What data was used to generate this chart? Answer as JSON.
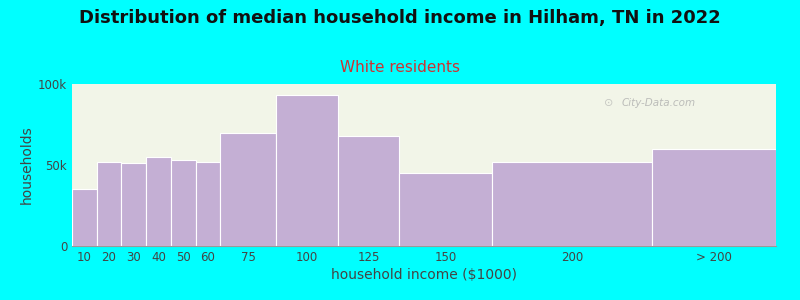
{
  "title": "Distribution of median household income in Hilham, TN in 2022",
  "subtitle": "White residents",
  "xlabel": "household income ($1000)",
  "ylabel": "households",
  "background_color": "#00FFFF",
  "plot_bg_color": "#f2f5e8",
  "bar_color": "#c4afd4",
  "bar_edge_color": "#ffffff",
  "categories": [
    "10",
    "20",
    "30",
    "40",
    "50",
    "60",
    "75",
    "100",
    "125",
    "150",
    "200",
    "> 200"
  ],
  "bin_edges": [
    5,
    15,
    25,
    35,
    45,
    55,
    65,
    87.5,
    112.5,
    137.5,
    175,
    240,
    290
  ],
  "values": [
    35000,
    52000,
    51000,
    55000,
    53000,
    52000,
    70000,
    93000,
    68000,
    45000,
    52000,
    60000
  ],
  "ylim": [
    0,
    100000
  ],
  "ytick_labels": [
    "0",
    "50k",
    "100k"
  ],
  "ytick_values": [
    0,
    50000,
    100000
  ],
  "title_fontsize": 13,
  "subtitle_fontsize": 11,
  "axis_label_fontsize": 10,
  "tick_fontsize": 8.5,
  "watermark": "City-Data.com",
  "subtitle_color": "#cc3333",
  "title_color": "#111111"
}
